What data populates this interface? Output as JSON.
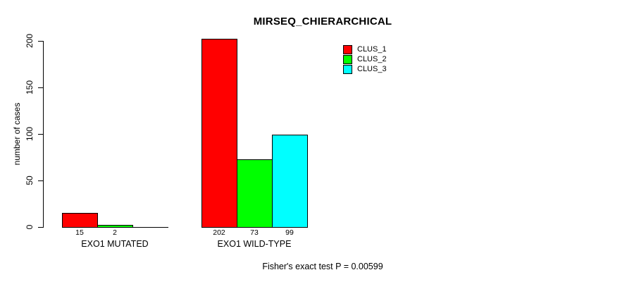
{
  "chart_data": {
    "type": "bar",
    "title": "MIRSEQ_CHIERARCHICAL",
    "ylabel": "number of cases",
    "xlabel": "",
    "ylim": [
      0,
      200
    ],
    "yticks": [
      0,
      50,
      100,
      150,
      200
    ],
    "grid": false,
    "legend_position": "top-right",
    "series": [
      "CLUS_1",
      "CLUS_2",
      "CLUS_3"
    ],
    "colors": [
      "#ff0000",
      "#00ff00",
      "#00ffff"
    ],
    "categories": [
      "EXO1 MUTATED",
      "EXO1 WILD-TYPE"
    ],
    "groups": [
      {
        "label": "EXO1 MUTATED",
        "values": [
          15,
          2,
          0
        ]
      },
      {
        "label": "EXO1 WILD-TYPE",
        "values": [
          202,
          73,
          99
        ]
      }
    ],
    "value_labels": [
      [
        "15",
        "2",
        ""
      ],
      [
        "202",
        "73",
        "99"
      ]
    ],
    "annotation": "Fisher's exact test P = 0.00599"
  }
}
